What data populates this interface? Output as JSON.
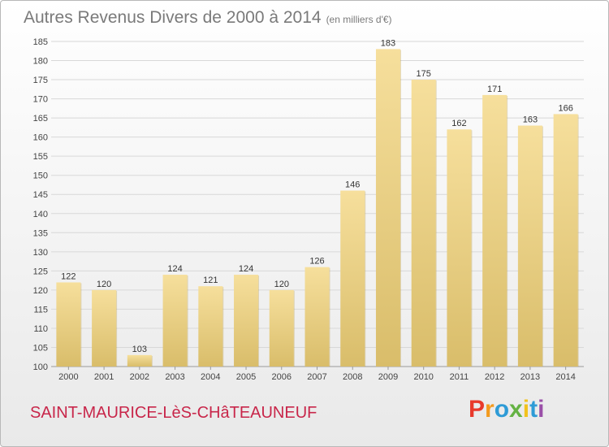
{
  "header": {
    "title": "Autres Revenus Divers de 2000 à 2014",
    "subtitle": "(en milliers d'€)"
  },
  "footer": {
    "location": "SAINT-MAURICE-LèS-CHâTEAUNEUF",
    "logo": [
      "P",
      "r",
      "o",
      "x",
      "i",
      "t",
      "i"
    ]
  },
  "colors": {
    "bar_light": "#f6df9c",
    "bar_dark": "#d9bd6a",
    "bar_shadow": "#b89a48",
    "grid": "#d8d8d8",
    "axis_text": "#444444",
    "label_text": "#333333"
  },
  "chart_data": {
    "type": "bar",
    "categories": [
      "2000",
      "2001",
      "2002",
      "2003",
      "2004",
      "2005",
      "2006",
      "2007",
      "2008",
      "2009",
      "2010",
      "2011",
      "2012",
      "2013",
      "2014"
    ],
    "values": [
      122,
      120,
      103,
      124,
      121,
      124,
      120,
      126,
      146,
      183,
      175,
      162,
      171,
      163,
      166
    ],
    "data_labels": [
      "122",
      "120",
      "103",
      "124",
      "121",
      "124",
      "120",
      "126",
      "146",
      "183",
      "175",
      "162",
      "171",
      "163",
      "166"
    ],
    "yticks": [
      "100",
      "105",
      "110",
      "115",
      "120",
      "125",
      "130",
      "135",
      "140",
      "145",
      "150",
      "155",
      "160",
      "165",
      "170",
      "175",
      "180",
      "185"
    ],
    "ylim": [
      100,
      185
    ],
    "grid": true,
    "legend": "none"
  }
}
